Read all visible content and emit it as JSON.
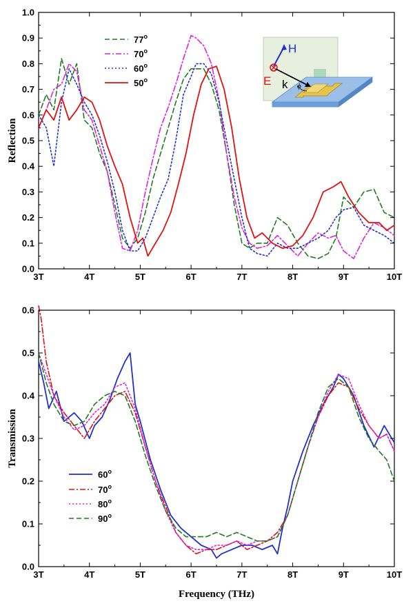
{
  "chart_data": [
    {
      "type": "line",
      "title": "",
      "xlabel": "",
      "ylabel": "Reflection",
      "xlim": [
        3,
        10
      ],
      "ylim": [
        0.0,
        1.0
      ],
      "xticks": [
        "3T",
        "4T",
        "5T",
        "6T",
        "7T",
        "8T",
        "9T",
        "10T"
      ],
      "yticks": [
        "0.0",
        "0.1",
        "0.2",
        "0.3",
        "0.4",
        "0.5",
        "0.6",
        "0.7",
        "0.8",
        "0.9",
        "1.0"
      ],
      "legend_position": "top-left",
      "series": [
        {
          "name": "77",
          "degree": "o",
          "color": "#1e7a1e",
          "dash": "dashed",
          "x": [
            3.0,
            3.15,
            3.3,
            3.45,
            3.6,
            3.75,
            3.9,
            4.05,
            4.2,
            4.35,
            4.5,
            4.65,
            4.8,
            4.95,
            5.1,
            5.25,
            5.4,
            5.55,
            5.7,
            5.85,
            6.0,
            6.1,
            6.25,
            6.4,
            6.55,
            6.7,
            6.85,
            7.0,
            7.15,
            7.3,
            7.5,
            7.7,
            7.9,
            8.1,
            8.3,
            8.5,
            8.7,
            8.85,
            9.0,
            9.2,
            9.4,
            9.6,
            9.8,
            10.0
          ],
          "y": [
            0.6,
            0.68,
            0.62,
            0.82,
            0.72,
            0.8,
            0.58,
            0.55,
            0.45,
            0.38,
            0.25,
            0.12,
            0.08,
            0.12,
            0.22,
            0.35,
            0.45,
            0.55,
            0.65,
            0.74,
            0.78,
            0.78,
            0.78,
            0.72,
            0.62,
            0.45,
            0.25,
            0.1,
            0.08,
            0.1,
            0.1,
            0.2,
            0.17,
            0.1,
            0.05,
            0.04,
            0.06,
            0.12,
            0.28,
            0.24,
            0.3,
            0.31,
            0.22,
            0.2
          ]
        },
        {
          "name": "70",
          "degree": "o",
          "color": "#e020e0",
          "dash": "dashdot",
          "x": [
            3.0,
            3.15,
            3.3,
            3.45,
            3.6,
            3.75,
            3.9,
            4.05,
            4.2,
            4.35,
            4.5,
            4.65,
            4.8,
            4.95,
            5.1,
            5.25,
            5.4,
            5.55,
            5.7,
            5.85,
            6.0,
            6.1,
            6.25,
            6.4,
            6.55,
            6.7,
            6.85,
            7.0,
            7.15,
            7.3,
            7.5,
            7.7,
            7.9,
            8.1,
            8.3,
            8.5,
            8.7,
            8.85,
            9.0,
            9.2,
            9.4,
            9.6,
            9.8,
            10.0
          ],
          "y": [
            0.55,
            0.62,
            0.7,
            0.72,
            0.8,
            0.77,
            0.62,
            0.58,
            0.48,
            0.38,
            0.22,
            0.08,
            0.07,
            0.15,
            0.3,
            0.43,
            0.55,
            0.63,
            0.72,
            0.82,
            0.91,
            0.9,
            0.87,
            0.8,
            0.66,
            0.45,
            0.28,
            0.16,
            0.1,
            0.08,
            0.09,
            0.13,
            0.09,
            0.05,
            0.1,
            0.14,
            0.12,
            0.13,
            0.07,
            0.04,
            0.12,
            0.18,
            0.16,
            0.13
          ]
        },
        {
          "name": "60",
          "degree": "o",
          "color": "#1f2fd0",
          "dash": "dotted",
          "x": [
            3.0,
            3.15,
            3.3,
            3.45,
            3.6,
            3.75,
            3.9,
            4.05,
            4.2,
            4.35,
            4.5,
            4.65,
            4.8,
            4.95,
            5.1,
            5.25,
            5.4,
            5.55,
            5.7,
            5.85,
            6.0,
            6.1,
            6.25,
            6.4,
            6.55,
            6.7,
            6.85,
            7.0,
            7.15,
            7.3,
            7.5,
            7.7,
            7.9,
            8.1,
            8.3,
            8.5,
            8.7,
            8.85,
            9.0,
            9.2,
            9.4,
            9.6,
            9.8,
            10.0
          ],
          "y": [
            0.6,
            0.55,
            0.4,
            0.65,
            0.78,
            0.72,
            0.65,
            0.6,
            0.52,
            0.42,
            0.3,
            0.15,
            0.07,
            0.07,
            0.12,
            0.2,
            0.28,
            0.35,
            0.5,
            0.68,
            0.75,
            0.8,
            0.8,
            0.76,
            0.65,
            0.5,
            0.35,
            0.2,
            0.08,
            0.06,
            0.05,
            0.1,
            0.08,
            0.08,
            0.1,
            0.12,
            0.15,
            0.2,
            0.23,
            0.24,
            0.17,
            0.15,
            0.13,
            0.1
          ]
        },
        {
          "name": "50",
          "degree": "o",
          "color": "#e01010",
          "dash": "solid",
          "x": [
            3.0,
            3.15,
            3.3,
            3.45,
            3.6,
            3.75,
            3.9,
            4.05,
            4.2,
            4.35,
            4.5,
            4.65,
            4.8,
            4.95,
            5.05,
            5.15,
            5.3,
            5.45,
            5.6,
            5.75,
            5.9,
            6.05,
            6.2,
            6.35,
            6.5,
            6.65,
            6.8,
            6.95,
            7.1,
            7.25,
            7.4,
            7.6,
            7.8,
            8.0,
            8.2,
            8.4,
            8.6,
            8.8,
            8.95,
            9.1,
            9.3,
            9.5,
            9.7,
            9.85,
            10.0
          ],
          "y": [
            0.55,
            0.62,
            0.58,
            0.67,
            0.58,
            0.62,
            0.67,
            0.65,
            0.58,
            0.48,
            0.4,
            0.33,
            0.2,
            0.1,
            0.12,
            0.05,
            0.1,
            0.15,
            0.22,
            0.33,
            0.45,
            0.6,
            0.72,
            0.78,
            0.79,
            0.7,
            0.55,
            0.35,
            0.2,
            0.12,
            0.14,
            0.1,
            0.08,
            0.09,
            0.13,
            0.2,
            0.3,
            0.32,
            0.34,
            0.28,
            0.22,
            0.18,
            0.18,
            0.15,
            0.17
          ]
        }
      ]
    },
    {
      "type": "line",
      "title": "",
      "xlabel": "Frequency (THz)",
      "ylabel": "Transmission",
      "xlim": [
        3,
        10
      ],
      "ylim": [
        0.0,
        0.6
      ],
      "xticks": [
        "3T",
        "4T",
        "5T",
        "6T",
        "7T",
        "8T",
        "9T",
        "10T"
      ],
      "yticks": [
        "0.0",
        "0.1",
        "0.2",
        "0.3",
        "0.4",
        "0.5",
        "0.6"
      ],
      "legend_position": "bottom-left",
      "series": [
        {
          "name": "60",
          "degree": "o",
          "color": "#1f2fd0",
          "dash": "solid",
          "x": [
            3.0,
            3.1,
            3.2,
            3.35,
            3.5,
            3.7,
            3.85,
            4.0,
            4.1,
            4.25,
            4.4,
            4.55,
            4.7,
            4.8,
            4.9,
            5.0,
            5.2,
            5.4,
            5.6,
            5.8,
            6.0,
            6.2,
            6.4,
            6.5,
            6.6,
            6.8,
            7.0,
            7.2,
            7.4,
            7.6,
            7.7,
            7.8,
            7.9,
            8.0,
            8.2,
            8.4,
            8.6,
            8.8,
            8.9,
            9.0,
            9.2,
            9.4,
            9.6,
            9.8,
            10.0
          ],
          "y": [
            0.48,
            0.43,
            0.37,
            0.41,
            0.34,
            0.36,
            0.34,
            0.3,
            0.33,
            0.35,
            0.39,
            0.44,
            0.48,
            0.5,
            0.38,
            0.34,
            0.25,
            0.18,
            0.12,
            0.09,
            0.07,
            0.05,
            0.04,
            0.02,
            0.03,
            0.04,
            0.05,
            0.05,
            0.04,
            0.05,
            0.03,
            0.09,
            0.14,
            0.2,
            0.27,
            0.33,
            0.38,
            0.42,
            0.45,
            0.44,
            0.4,
            0.33,
            0.28,
            0.33,
            0.29
          ]
        },
        {
          "name": "70",
          "degree": "o",
          "color": "#e01010",
          "dash": "dashdot",
          "x": [
            3.0,
            3.05,
            3.15,
            3.3,
            3.5,
            3.7,
            3.9,
            4.1,
            4.3,
            4.5,
            4.7,
            4.9,
            5.1,
            5.3,
            5.5,
            5.7,
            5.9,
            6.1,
            6.3,
            6.5,
            6.7,
            6.9,
            7.1,
            7.3,
            7.5,
            7.7,
            7.9,
            8.1,
            8.3,
            8.5,
            8.7,
            8.9,
            9.1,
            9.3,
            9.5,
            9.7,
            9.85,
            10.0
          ],
          "y": [
            0.61,
            0.58,
            0.48,
            0.4,
            0.36,
            0.33,
            0.3,
            0.34,
            0.37,
            0.4,
            0.41,
            0.36,
            0.28,
            0.2,
            0.14,
            0.08,
            0.05,
            0.03,
            0.04,
            0.04,
            0.05,
            0.06,
            0.04,
            0.05,
            0.06,
            0.08,
            0.12,
            0.2,
            0.28,
            0.35,
            0.4,
            0.43,
            0.42,
            0.37,
            0.33,
            0.3,
            0.31,
            0.27
          ]
        },
        {
          "name": "80",
          "degree": "o",
          "color": "#e020e0",
          "dash": "dotted",
          "x": [
            3.0,
            3.15,
            3.3,
            3.5,
            3.7,
            3.9,
            4.1,
            4.3,
            4.5,
            4.7,
            4.9,
            5.1,
            5.3,
            5.5,
            5.7,
            5.9,
            6.1,
            6.3,
            6.5,
            6.7,
            6.9,
            7.1,
            7.3,
            7.5,
            7.7,
            7.9,
            8.1,
            8.3,
            8.5,
            8.7,
            8.9,
            9.1,
            9.3,
            9.5,
            9.7,
            9.85,
            10.0
          ],
          "y": [
            0.5,
            0.45,
            0.4,
            0.35,
            0.32,
            0.33,
            0.36,
            0.38,
            0.42,
            0.43,
            0.37,
            0.28,
            0.2,
            0.13,
            0.08,
            0.05,
            0.04,
            0.04,
            0.05,
            0.05,
            0.06,
            0.05,
            0.06,
            0.06,
            0.07,
            0.12,
            0.2,
            0.28,
            0.35,
            0.41,
            0.45,
            0.44,
            0.38,
            0.33,
            0.3,
            0.31,
            0.27
          ]
        },
        {
          "name": "90",
          "degree": "o",
          "color": "#1e7a1e",
          "dash": "dashed",
          "x": [
            3.0,
            3.15,
            3.3,
            3.5,
            3.7,
            3.9,
            4.1,
            4.3,
            4.5,
            4.7,
            4.9,
            5.1,
            5.3,
            5.5,
            5.7,
            5.9,
            6.1,
            6.3,
            6.5,
            6.7,
            6.9,
            7.1,
            7.3,
            7.5,
            7.7,
            7.9,
            8.1,
            8.3,
            8.5,
            8.7,
            8.9,
            9.1,
            9.3,
            9.5,
            9.7,
            9.85,
            10.0
          ],
          "y": [
            0.5,
            0.43,
            0.38,
            0.34,
            0.33,
            0.34,
            0.38,
            0.4,
            0.41,
            0.4,
            0.34,
            0.26,
            0.19,
            0.13,
            0.09,
            0.07,
            0.07,
            0.07,
            0.08,
            0.07,
            0.08,
            0.07,
            0.06,
            0.06,
            0.07,
            0.12,
            0.2,
            0.28,
            0.36,
            0.42,
            0.44,
            0.42,
            0.35,
            0.3,
            0.27,
            0.25,
            0.2
          ]
        }
      ]
    }
  ],
  "inset": {
    "labels": {
      "h": "H",
      "e": "E",
      "k": "k",
      "phi": "ϕ"
    },
    "colors": {
      "h": "#1f2fd0",
      "e": "#e01010",
      "k": "#000000",
      "slab": "#9bbfe8",
      "slab_edge": "#5b8dc9",
      "resonator": "#e6c34a",
      "background": "#e7efdf"
    }
  }
}
